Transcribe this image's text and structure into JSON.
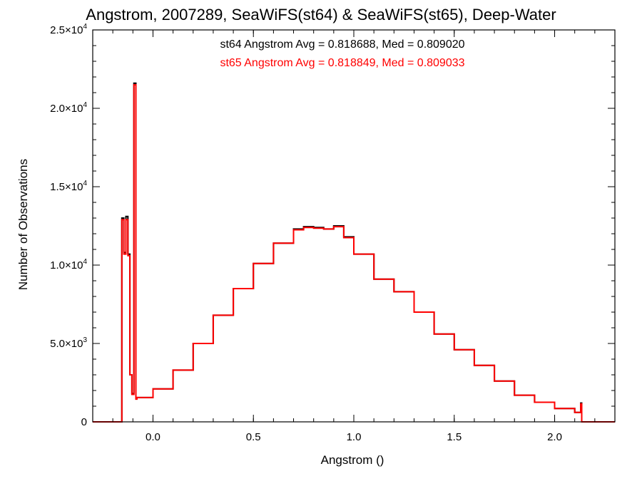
{
  "chart_data": {
    "type": "histogram",
    "title": "Angstrom, 2007289, SeaWiFS(st64) & SeaWiFS(st65), Deep-Water",
    "xlabel": "Angstrom ()",
    "ylabel": "Number of Observations",
    "xlim": [
      -0.3,
      2.3
    ],
    "ylim": [
      0,
      25000
    ],
    "x_ticks": [
      {
        "value": 0.0,
        "label": "0.0"
      },
      {
        "value": 0.5,
        "label": "0.5"
      },
      {
        "value": 1.0,
        "label": "1.0"
      },
      {
        "value": 1.5,
        "label": "1.5"
      },
      {
        "value": 2.0,
        "label": "2.0"
      }
    ],
    "y_ticks": [
      {
        "value": 0,
        "mant": "0",
        "exp": ""
      },
      {
        "value": 5000,
        "mant": "5.0×10",
        "exp": "3"
      },
      {
        "value": 10000,
        "mant": "1.0×10",
        "exp": "4"
      },
      {
        "value": 15000,
        "mant": "1.5×10",
        "exp": "4"
      },
      {
        "value": 20000,
        "mant": "2.0×10",
        "exp": "4"
      },
      {
        "value": 25000,
        "mant": "2.5×10",
        "exp": "4"
      }
    ],
    "annotations": [
      "st64 Angstrom Avg = 0.818688, Med = 0.809020",
      "st65 Angstrom Avg = 0.818849, Med = 0.809033"
    ],
    "series": [
      {
        "name": "st64",
        "color": "#000000",
        "x": [
          -0.3,
          -0.16,
          -0.155,
          -0.145,
          -0.135,
          -0.125,
          -0.115,
          -0.105,
          -0.095,
          -0.085,
          -0.08,
          0.0,
          0.1,
          0.2,
          0.3,
          0.4,
          0.5,
          0.6,
          0.7,
          0.75,
          0.8,
          0.85,
          0.9,
          0.95,
          1.0,
          1.1,
          1.2,
          1.3,
          1.4,
          1.5,
          1.6,
          1.7,
          1.8,
          1.9,
          2.0,
          2.1,
          2.13,
          2.135,
          2.145,
          2.3
        ],
        "y": [
          0,
          0,
          13000,
          10800,
          13100,
          10700,
          3000,
          1800,
          21600,
          1500,
          1550,
          2100,
          3300,
          5000,
          6800,
          8500,
          10100,
          11400,
          12300,
          12450,
          12400,
          12300,
          12500,
          11800,
          10700,
          9100,
          8300,
          7000,
          5600,
          4600,
          3600,
          2600,
          1700,
          1250,
          850,
          600,
          1200,
          0,
          0,
          0
        ]
      },
      {
        "name": "st65",
        "color": "#ff0000",
        "x": [
          -0.3,
          -0.16,
          -0.155,
          -0.145,
          -0.135,
          -0.125,
          -0.115,
          -0.105,
          -0.095,
          -0.085,
          -0.08,
          0.0,
          0.1,
          0.2,
          0.3,
          0.4,
          0.5,
          0.6,
          0.7,
          0.75,
          0.8,
          0.85,
          0.9,
          0.95,
          1.0,
          1.1,
          1.2,
          1.3,
          1.4,
          1.5,
          1.6,
          1.7,
          1.8,
          1.9,
          2.0,
          2.1,
          2.13,
          2.135,
          2.145,
          2.3
        ],
        "y": [
          0,
          0,
          12900,
          10700,
          12900,
          10600,
          3000,
          1750,
          21500,
          1450,
          1550,
          2100,
          3300,
          5000,
          6800,
          8500,
          10100,
          11400,
          12250,
          12400,
          12350,
          12300,
          12450,
          11750,
          10700,
          9100,
          8300,
          7000,
          5600,
          4600,
          3600,
          2600,
          1700,
          1250,
          850,
          600,
          1150,
          0,
          0,
          0
        ]
      }
    ]
  }
}
